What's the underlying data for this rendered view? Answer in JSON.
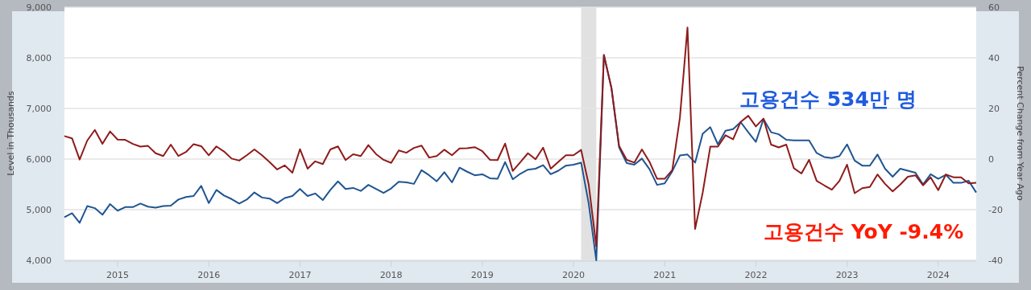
{
  "chart_data": {
    "type": "line",
    "ylabel": "Level in Thousands",
    "y2label": "Percent Change from Year Ago",
    "annotations": [
      "고용건수 534만 명",
      "고용건수 YoY -9.4%"
    ],
    "x": [
      "2014-06",
      "2014-07",
      "2014-08",
      "2014-09",
      "2014-10",
      "2014-11",
      "2014-12",
      "2015-01",
      "2015-02",
      "2015-03",
      "2015-04",
      "2015-05",
      "2015-06",
      "2015-07",
      "2015-08",
      "2015-09",
      "2015-10",
      "2015-11",
      "2015-12",
      "2016-01",
      "2016-02",
      "2016-03",
      "2016-04",
      "2016-05",
      "2016-06",
      "2016-07",
      "2016-08",
      "2016-09",
      "2016-10",
      "2016-11",
      "2016-12",
      "2017-01",
      "2017-02",
      "2017-03",
      "2017-04",
      "2017-05",
      "2017-06",
      "2017-07",
      "2017-08",
      "2017-09",
      "2017-10",
      "2017-11",
      "2017-12",
      "2018-01",
      "2018-02",
      "2018-03",
      "2018-04",
      "2018-05",
      "2018-06",
      "2018-07",
      "2018-08",
      "2018-09",
      "2018-10",
      "2018-11",
      "2018-12",
      "2019-01",
      "2019-02",
      "2019-03",
      "2019-04",
      "2019-05",
      "2019-06",
      "2019-07",
      "2019-08",
      "2019-09",
      "2019-10",
      "2019-11",
      "2019-12",
      "2020-01",
      "2020-02",
      "2020-03",
      "2020-04",
      "2020-05",
      "2020-06",
      "2020-07",
      "2020-08",
      "2020-09",
      "2020-10",
      "2020-11",
      "2020-12",
      "2021-01",
      "2021-02",
      "2021-03",
      "2021-04",
      "2021-05",
      "2021-06",
      "2021-07",
      "2021-08",
      "2021-09",
      "2021-10",
      "2021-11",
      "2021-12",
      "2022-01",
      "2022-02",
      "2022-03",
      "2022-04",
      "2022-05",
      "2022-06",
      "2022-07",
      "2022-08",
      "2022-09",
      "2022-10",
      "2022-11",
      "2022-12",
      "2023-01",
      "2023-02",
      "2023-03",
      "2023-04",
      "2023-05",
      "2023-06",
      "2023-07",
      "2023-08",
      "2023-09",
      "2023-10",
      "2023-11",
      "2023-12",
      "2024-01",
      "2024-02",
      "2024-03",
      "2024-04",
      "2024-05",
      "2024-06"
    ],
    "series": [
      {
        "color": "#1f5591",
        "values": [
          4850,
          4930,
          4740,
          5070,
          5030,
          4900,
          5110,
          4980,
          5050,
          5050,
          5120,
          5060,
          5040,
          5070,
          5080,
          5200,
          5250,
          5270,
          5470,
          5130,
          5390,
          5280,
          5210,
          5120,
          5200,
          5340,
          5240,
          5220,
          5130,
          5230,
          5270,
          5410,
          5270,
          5320,
          5190,
          5390,
          5560,
          5410,
          5430,
          5370,
          5490,
          5410,
          5330,
          5420,
          5550,
          5540,
          5510,
          5780,
          5680,
          5560,
          5740,
          5540,
          5830,
          5750,
          5680,
          5700,
          5620,
          5610,
          5940,
          5600,
          5710,
          5790,
          5810,
          5880,
          5700,
          5770,
          5870,
          5890,
          5930,
          5120,
          4000,
          8050,
          7400,
          6230,
          5920,
          5890,
          6010,
          5800,
          5490,
          5520,
          5760,
          6070,
          6090,
          5930,
          6500,
          6630,
          6290,
          6560,
          6590,
          6730,
          6530,
          6340,
          6790,
          6530,
          6490,
          6380,
          6370,
          6370,
          6370,
          6120,
          6040,
          6020,
          6060,
          6290,
          5970,
          5870,
          5870,
          6090,
          5810,
          5650,
          5810,
          5770,
          5730,
          5500,
          5700,
          5610,
          5690,
          5530,
          5530,
          5570,
          5340
        ]
      },
      {
        "color": "#8e1b1b",
        "axis": "y2",
        "values": [
          9.1,
          8.2,
          -0.2,
          7.3,
          11.5,
          6.0,
          10.9,
          7.7,
          7.6,
          6.0,
          4.9,
          5.2,
          2.3,
          1.2,
          5.7,
          1.2,
          2.8,
          5.9,
          5.1,
          1.5,
          5.0,
          3.0,
          0.2,
          -0.6,
          1.5,
          3.8,
          1.5,
          -1.2,
          -4.1,
          -2.5,
          -5.4,
          3.9,
          -3.8,
          -0.9,
          -2.0,
          3.8,
          5.0,
          -0.4,
          1.9,
          1.2,
          5.5,
          2.0,
          -0.3,
          -1.5,
          3.4,
          2.5,
          4.4,
          5.3,
          0.6,
          1.2,
          3.7,
          1.5,
          4.2,
          4.3,
          4.7,
          3.1,
          -0.3,
          -0.4,
          6.1,
          -4.7,
          -1.2,
          2.3,
          -0.1,
          4.5,
          -3.8,
          -1.1,
          1.5,
          1.5,
          3.6,
          -10.1,
          -34.5,
          41.2,
          27.9,
          5.2,
          -0.3,
          -1.4,
          3.8,
          -1.1,
          -7.8,
          -7.8,
          -4.3,
          16.3,
          52.0,
          -27.6,
          -13.3,
          4.9,
          4.9,
          9.4,
          7.8,
          14.7,
          17.1,
          12.9,
          16.0,
          5.7,
          4.6,
          5.7,
          -3.6,
          -5.7,
          -0.3,
          -8.6,
          -10.4,
          -12.1,
          -8.6,
          -2.2,
          -13.5,
          -11.5,
          -11.0,
          -6.1,
          -9.8,
          -12.8,
          -10.1,
          -7.0,
          -6.4,
          -10.4,
          -7.2,
          -12.3,
          -6.1,
          -7.2,
          -7.2,
          -9.6,
          -9.4
        ]
      }
    ],
    "xlim": [
      "2014-06",
      "2024-06"
    ],
    "xticks": [
      "2015",
      "2016",
      "2017",
      "2018",
      "2019",
      "2020",
      "2021",
      "2022",
      "2023",
      "2024"
    ],
    "ylim": [
      4000,
      9000
    ],
    "yticks": [
      {
        "value": 4000,
        "label": "4,000"
      },
      {
        "value": 5000,
        "label": "5,000"
      },
      {
        "value": 6000,
        "label": "6,000"
      },
      {
        "value": 7000,
        "label": "7,000"
      },
      {
        "value": 8000,
        "label": "8,000"
      },
      {
        "value": 9000,
        "label": "9,000"
      }
    ],
    "y2lim": [
      -40,
      60
    ],
    "y2ticks": [
      -40,
      -20,
      0,
      20,
      40,
      60
    ],
    "bands": [
      {
        "axis": "x",
        "from": "2020-02",
        "to": "2020-04",
        "color": "#e1e1e1"
      }
    ],
    "grid": "y"
  }
}
